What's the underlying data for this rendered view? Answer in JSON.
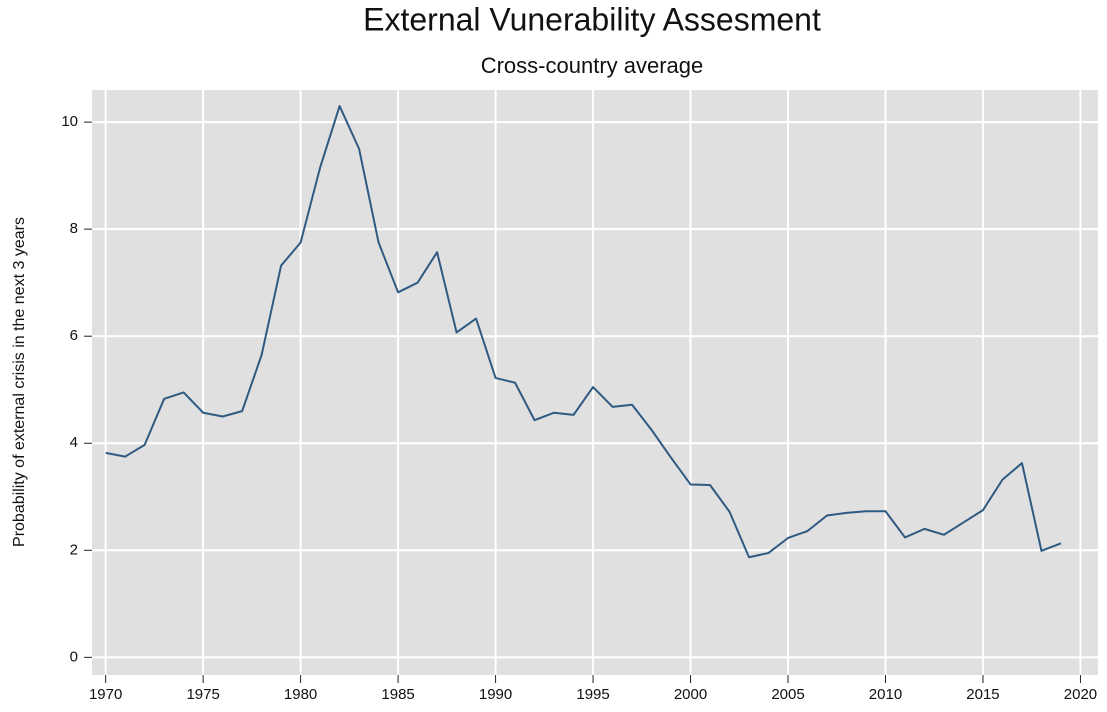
{
  "chart_data": {
    "type": "line",
    "title": "External Vunerability Assesment",
    "subtitle": "Cross-country average",
    "y_label": "Probability of external crisis in the next 3 years",
    "x": [
      1970,
      1971,
      1972,
      1973,
      1974,
      1975,
      1976,
      1977,
      1978,
      1979,
      1980,
      1981,
      1982,
      1983,
      1984,
      1985,
      1986,
      1987,
      1988,
      1989,
      1990,
      1991,
      1992,
      1993,
      1994,
      1995,
      1996,
      1997,
      1998,
      1999,
      2000,
      2001,
      2002,
      2003,
      2004,
      2005,
      2006,
      2007,
      2008,
      2009,
      2010,
      2011,
      2012,
      2013,
      2014,
      2015,
      2016,
      2017,
      2018,
      2019
    ],
    "series": [
      {
        "color": "#2f5a82",
        "values": [
          3.82,
          3.75,
          3.97,
          4.83,
          4.95,
          4.57,
          4.5,
          4.6,
          5.65,
          7.32,
          7.75,
          9.15,
          10.3,
          9.5,
          7.75,
          6.82,
          7.0,
          7.57,
          6.07,
          6.33,
          5.22,
          5.13,
          4.43,
          4.57,
          4.53,
          5.05,
          4.68,
          4.72,
          4.25,
          3.73,
          3.23,
          3.22,
          2.72,
          1.87,
          1.95,
          2.23,
          2.36,
          2.65,
          2.7,
          2.73,
          2.73,
          2.24,
          2.4,
          2.29,
          2.52,
          2.75,
          3.32,
          3.63,
          1.99,
          2.13
        ]
      }
    ],
    "xlim": [
      1969.3,
      2020.9
    ],
    "xticks": [
      1970,
      1975,
      1980,
      1985,
      1990,
      1995,
      2000,
      2005,
      2010,
      2015,
      2020
    ],
    "ylim": [
      -0.33,
      10.6
    ],
    "yticks": [
      0,
      2,
      4,
      6,
      8,
      10
    ],
    "grid": true,
    "background": "#e0e0e0"
  }
}
